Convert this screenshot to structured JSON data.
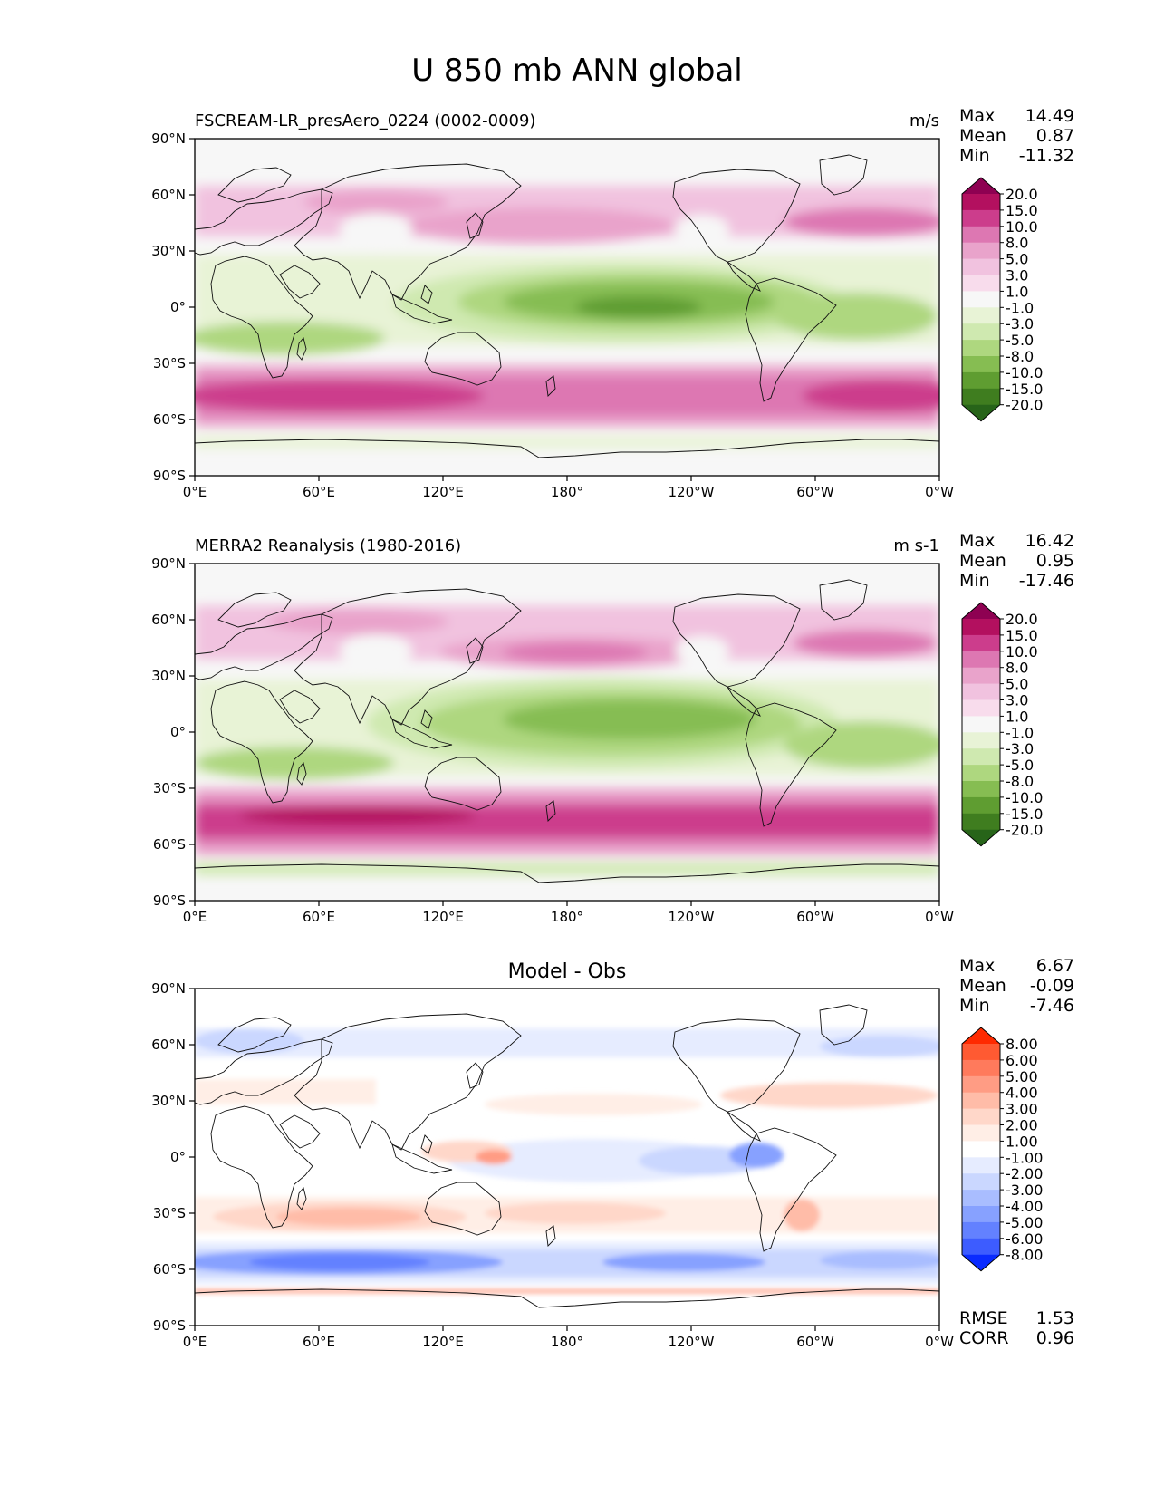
{
  "figure": {
    "title": "U 850 mb ANN global"
  },
  "x_ticks": [
    "0°E",
    "60°E",
    "120°E",
    "180°",
    "120°W",
    "60°W",
    "0°W"
  ],
  "y_ticks": [
    "90°N",
    "60°N",
    "30°N",
    "0°",
    "30°S",
    "60°S",
    "90°S"
  ],
  "panels": [
    {
      "id": "model",
      "title_left": "FSCREAM-LR_presAero_0224 (0002-0009)",
      "title_center": "",
      "units": "m/s",
      "stats": [
        {
          "label": "Max",
          "value": "14.49"
        },
        {
          "label": "Mean",
          "value": "0.87"
        },
        {
          "label": "Min",
          "value": "-11.32"
        }
      ],
      "extra_stats": [],
      "colorbar": {
        "labels": [
          "20.0",
          "15.0",
          "10.0",
          "8.0",
          "5.0",
          "3.0",
          "1.0",
          "-1.0",
          "-3.0",
          "-5.0",
          "-8.0",
          "-10.0",
          "-15.0",
          "-20.0"
        ],
        "colors": [
          "#8e0152",
          "#b3105f",
          "#cc3d8c",
          "#dd77b2",
          "#e9a3cb",
          "#f1c2df",
          "#f8dcec",
          "#f7f7f7",
          "#e8f3d6",
          "#cfe9b0",
          "#aed77f",
          "#86bd52",
          "#5f9d31",
          "#3f7d1f",
          "#276419"
        ]
      }
    },
    {
      "id": "obs",
      "title_left": "MERRA2 Reanalysis (1980-2016)",
      "title_center": "",
      "units": "m s-1",
      "stats": [
        {
          "label": "Max",
          "value": "16.42"
        },
        {
          "label": "Mean",
          "value": "0.95"
        },
        {
          "label": "Min",
          "value": "-17.46"
        }
      ],
      "extra_stats": [],
      "colorbar": {
        "labels": [
          "20.0",
          "15.0",
          "10.0",
          "8.0",
          "5.0",
          "3.0",
          "1.0",
          "-1.0",
          "-3.0",
          "-5.0",
          "-8.0",
          "-10.0",
          "-15.0",
          "-20.0"
        ],
        "colors": [
          "#8e0152",
          "#b3105f",
          "#cc3d8c",
          "#dd77b2",
          "#e9a3cb",
          "#f1c2df",
          "#f8dcec",
          "#f7f7f7",
          "#e8f3d6",
          "#cfe9b0",
          "#aed77f",
          "#86bd52",
          "#5f9d31",
          "#3f7d1f",
          "#276419"
        ]
      }
    },
    {
      "id": "diff",
      "title_left": "",
      "title_center": "Model - Obs",
      "units": "",
      "stats": [
        {
          "label": "Max",
          "value": "6.67"
        },
        {
          "label": "Mean",
          "value": "-0.09"
        },
        {
          "label": "Min",
          "value": "-7.46"
        }
      ],
      "extra_stats": [
        {
          "label": "RMSE",
          "value": "1.53"
        },
        {
          "label": "CORR",
          "value": "0.96"
        }
      ],
      "colorbar": {
        "labels": [
          "8.00",
          "6.00",
          "5.00",
          "4.00",
          "3.00",
          "2.00",
          "1.00",
          "-1.00",
          "-2.00",
          "-3.00",
          "-4.00",
          "-5.00",
          "-6.00",
          "-8.00"
        ],
        "colors": [
          "#ff2a00",
          "#ff5a32",
          "#ff7a5c",
          "#ff9c84",
          "#ffbca8",
          "#ffd7c9",
          "#ffeee6",
          "#ffffff",
          "#e6ecff",
          "#cad7ff",
          "#a9bdff",
          "#87a1ff",
          "#6381ff",
          "#3d5cff",
          "#0a2bff"
        ]
      }
    }
  ]
}
